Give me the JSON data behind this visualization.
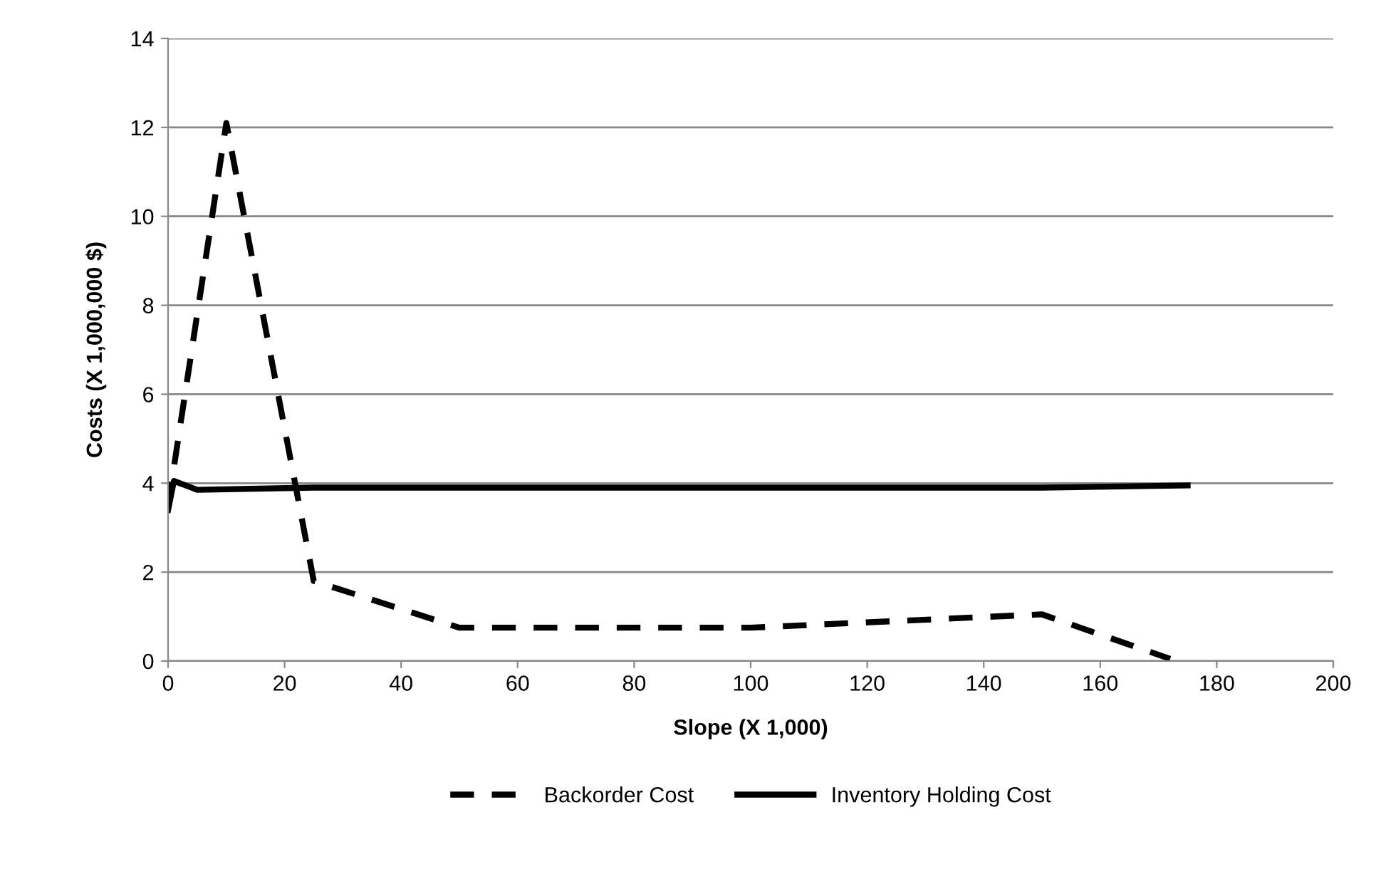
{
  "chart_data": {
    "type": "line",
    "xlabel": "Slope (X 1,000)",
    "ylabel": "Costs (X 1,000,000 $)",
    "series": [
      {
        "name": "Backorder Cost",
        "color": "#000000",
        "line_style": "dashed",
        "x": [
          0,
          10,
          25,
          50,
          100,
          150,
          172
        ],
        "values": [
          3.5,
          12.1,
          1.8,
          0.75,
          0.75,
          1.05,
          0.05
        ]
      },
      {
        "name": "Inventory Holding Cost",
        "color": "#000000",
        "line_style": "solid",
        "x": [
          0,
          1,
          5,
          25,
          150,
          175
        ],
        "values": [
          3.4,
          4.05,
          3.85,
          3.9,
          3.9,
          3.95
        ]
      }
    ],
    "xlim": [
      0,
      200
    ],
    "xticks": [
      0,
      20,
      40,
      60,
      80,
      100,
      120,
      140,
      160,
      180,
      200
    ],
    "ylim": [
      0,
      14
    ],
    "yticks": [
      0,
      2,
      4,
      6,
      8,
      10,
      12,
      14
    ],
    "grid": "y",
    "legend": "bottom",
    "marker": "none"
  }
}
